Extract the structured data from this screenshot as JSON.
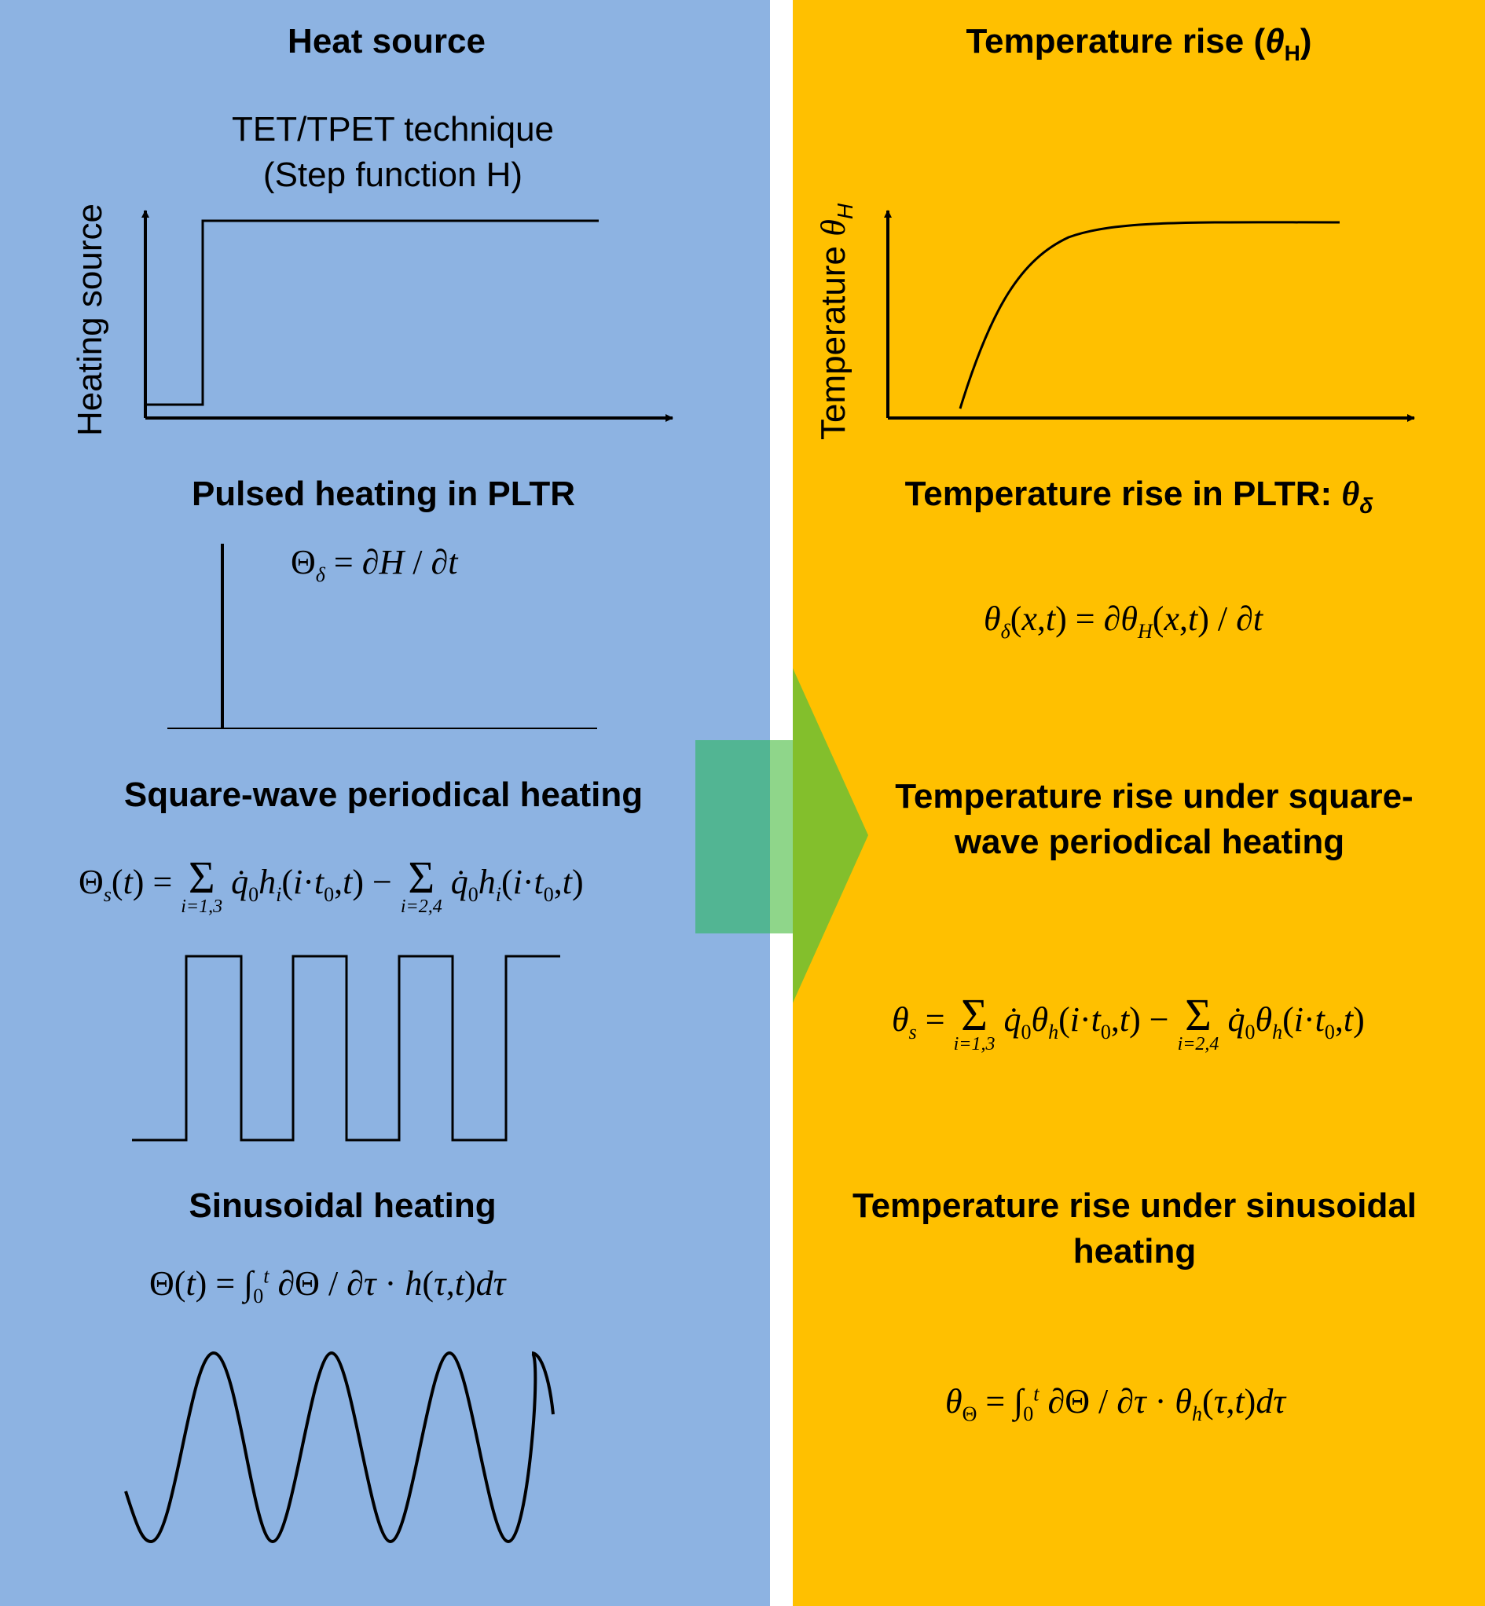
{
  "colors": {
    "left_bg": "#8db3e2",
    "right_bg": "#ffc000",
    "arrow_green": "#4fb56a",
    "arrow_light": "#8fd68a"
  },
  "left": {
    "heat_source_title": "Heat source",
    "tet_line1": "TET/TPET technique",
    "tet_line2": "(Step function H)",
    "heating_axis_label": "Heating source",
    "pulsed_title": "Pulsed heating in PLTR",
    "pulsed_eq": "Θδ = ∂H / ∂t",
    "square_title": "Square-wave periodical heating",
    "square_eq": "Θs(t) = Σ q̇0hi(i·t0,t) − Σ q̇0hi(i·t0,t)",
    "sum_limit_1": "i=1,3",
    "sum_limit_2": "i=2,4",
    "sin_title": "Sinusoidal heating",
    "sin_eq": "Θ(t) = ∫0t ∂Θ / ∂τ · h(τ,t)dτ"
  },
  "right": {
    "temp_rise_title": "Temperature rise (θH)",
    "temp_axis_label": "Temperature θH",
    "pltr_title": "Temperature rise in PLTR: θδ",
    "pltr_eq": "θδ(x,t) = ∂θH(x,t) / ∂t",
    "square_title_line1": "Temperature rise under square-",
    "square_title_line2": "wave periodical heating",
    "square_eq": "θs = Σ q̇0θh(i·t0,t) − Σ q̇0θh(i·t0,t)",
    "sin_title_line1": "Temperature rise under sinusoidal",
    "sin_title_line2": "heating",
    "sin_eq": "θΘ = ∫0t ∂Θ / ∂τ · θh(τ,t)dτ"
  }
}
